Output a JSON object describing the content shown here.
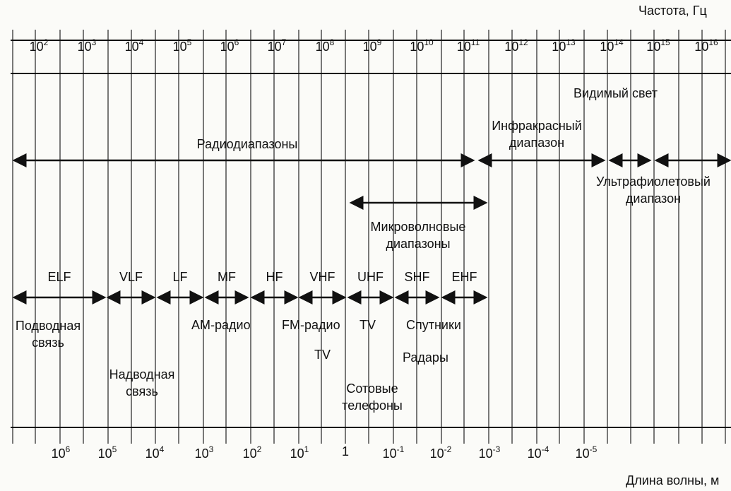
{
  "header": {
    "freq_axis_title": "Частота, Гц",
    "wave_axis_title": "Длина волны, м"
  },
  "freq_ticks": [
    {
      "base": "10",
      "exp": "2"
    },
    {
      "base": "10",
      "exp": "3"
    },
    {
      "base": "10",
      "exp": "4"
    },
    {
      "base": "10",
      "exp": "5"
    },
    {
      "base": "10",
      "exp": "6"
    },
    {
      "base": "10",
      "exp": "7"
    },
    {
      "base": "10",
      "exp": "8"
    },
    {
      "base": "10",
      "exp": "9"
    },
    {
      "base": "10",
      "exp": "10"
    },
    {
      "base": "10",
      "exp": "11"
    },
    {
      "base": "10",
      "exp": "12"
    },
    {
      "base": "10",
      "exp": "13"
    },
    {
      "base": "10",
      "exp": "14"
    },
    {
      "base": "10",
      "exp": "15"
    },
    {
      "base": "10",
      "exp": "16"
    }
  ],
  "wave_ticks": [
    {
      "base": "10",
      "exp": "6"
    },
    {
      "base": "10",
      "exp": "5"
    },
    {
      "base": "10",
      "exp": "4"
    },
    {
      "base": "10",
      "exp": "3"
    },
    {
      "base": "10",
      "exp": "2"
    },
    {
      "base": "10",
      "exp": "1"
    },
    {
      "base": "1",
      "exp": ""
    },
    {
      "base": "10",
      "exp": "-1"
    },
    {
      "base": "10",
      "exp": "-2"
    },
    {
      "base": "10",
      "exp": "-3"
    },
    {
      "base": "10",
      "exp": "-4"
    },
    {
      "base": "10",
      "exp": "-5"
    }
  ],
  "bands": {
    "radio": "Радиодиапазоны",
    "infrared_1": "Инфракрасный",
    "infrared_2": "диапазон",
    "visible": "Видимый свет",
    "uv_1": "Ультрафиолетовый",
    "uv_2": "диапазон",
    "microwave_1": "Микроволновые",
    "microwave_2": "диапазоны"
  },
  "sub_bands": [
    "ELF",
    "VLF",
    "LF",
    "MF",
    "HF",
    "VHF",
    "UHF",
    "SHF",
    "EHF"
  ],
  "applications": {
    "underwater_1": "Подводная",
    "underwater_2": "связь",
    "surface_1": "Надводная",
    "surface_2": "связь",
    "am_radio": "АМ-радио",
    "fm_radio": "FM-радио",
    "tv_fm": "TV",
    "tv": "TV",
    "satellites": "Спутники",
    "radars": "Радары",
    "cell_1": "Сотовые",
    "cell_2": "телефоны"
  }
}
